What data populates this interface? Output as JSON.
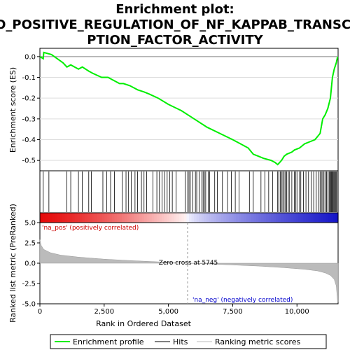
{
  "chart_data": {
    "type": "line",
    "title_lines": [
      "Enrichment plot:",
      "GO_POSITIVE_REGULATION_OF_NF_KAPPAB_TRANSCRI",
      "PTION_FACTOR_ACTIVITY"
    ],
    "n_genes": 11600,
    "x_ticks": [
      0,
      2500,
      5000,
      7500,
      10000
    ],
    "x_tick_labels": [
      "0",
      "2,500",
      "5,000",
      "7,500",
      "10,000"
    ],
    "xlim": [
      0,
      11600
    ],
    "xlabel": "Rank in Ordered Dataset",
    "es_panel": {
      "ylabel": "Enrichment score (ES)",
      "ylim": [
        -0.55,
        0.04
      ],
      "y_ticks": [
        0.0,
        -0.1,
        -0.2,
        -0.3,
        -0.4,
        -0.5
      ],
      "y_tick_labels": [
        "0.0",
        "-0.1",
        "-0.2",
        "-0.3",
        "-0.4",
        "-0.5"
      ],
      "series_color": "#00ee00",
      "x": [
        0,
        130,
        150,
        450,
        900,
        1050,
        1200,
        1500,
        1650,
        1900,
        2050,
        2400,
        2650,
        2800,
        3100,
        3250,
        3500,
        3800,
        4050,
        4250,
        4600,
        5000,
        5500,
        6000,
        6500,
        7000,
        7500,
        7800,
        8100,
        8300,
        8500,
        8700,
        9000,
        9150,
        9250,
        9400,
        9500,
        9600,
        9800,
        9900,
        10100,
        10300,
        10500,
        10700,
        10900,
        11000,
        11100,
        11200,
        11300,
        11380,
        11450,
        11530,
        11580
      ],
      "es": [
        0.0,
        -0.01,
        0.02,
        0.01,
        -0.03,
        -0.05,
        -0.04,
        -0.06,
        -0.05,
        -0.07,
        -0.08,
        -0.1,
        -0.1,
        -0.11,
        -0.13,
        -0.13,
        -0.14,
        -0.16,
        -0.17,
        -0.18,
        -0.2,
        -0.23,
        -0.26,
        -0.3,
        -0.34,
        -0.37,
        -0.4,
        -0.42,
        -0.44,
        -0.47,
        -0.48,
        -0.49,
        -0.5,
        -0.51,
        -0.52,
        -0.5,
        -0.48,
        -0.47,
        -0.46,
        -0.45,
        -0.44,
        -0.42,
        -0.41,
        -0.4,
        -0.37,
        -0.3,
        -0.28,
        -0.25,
        -0.2,
        -0.1,
        -0.06,
        -0.03,
        0.0
      ]
    },
    "hits": [
      130,
      350,
      1050,
      1200,
      1500,
      1650,
      1900,
      2000,
      2450,
      2600,
      2750,
      2900,
      3200,
      3350,
      3450,
      3550,
      3700,
      3800,
      3950,
      4050,
      4150,
      4400,
      4550,
      4650,
      4750,
      4850,
      4950,
      5050,
      5150,
      5300,
      5650,
      5750,
      5800,
      5850,
      5950,
      6050,
      6100,
      6200,
      6300,
      6350,
      6400,
      6450,
      6550,
      6600,
      6800,
      6900,
      7100,
      7300,
      7450,
      7600,
      7750,
      8150,
      8300,
      8600,
      8750,
      8900,
      9050,
      9250,
      9300,
      9350,
      9400,
      9450,
      9500,
      9550,
      9600,
      9650,
      9700,
      9800,
      9900,
      9950,
      10000,
      10100,
      10150,
      10250,
      10350,
      10450,
      10550,
      10650,
      10750,
      10850,
      10900,
      10950,
      11000,
      11050,
      11100,
      11150,
      11200,
      11250,
      11280,
      11310,
      11340,
      11370,
      11400,
      11430,
      11460,
      11490,
      11520,
      11550
    ],
    "metric_panel": {
      "ylabel": "Ranked list metric (PreRanked)",
      "ylim": [
        -5,
        5
      ],
      "y_ticks": [
        5.0,
        2.5,
        0.0,
        -2.5,
        -5.0
      ],
      "y_tick_labels": [
        "5.0",
        "2.5",
        "0.0",
        "-2.5",
        "-5.0"
      ],
      "x": [
        0,
        50,
        150,
        400,
        800,
        1500,
        2500,
        3500,
        4500,
        5745,
        7000,
        8500,
        9500,
        10300,
        10800,
        11100,
        11300,
        11450,
        11530,
        11580,
        11600
      ],
      "metric": [
        2.9,
        2.2,
        1.7,
        1.3,
        1.0,
        0.75,
        0.5,
        0.33,
        0.18,
        0.0,
        -0.15,
        -0.35,
        -0.55,
        -0.75,
        -0.95,
        -1.2,
        -1.5,
        -2.0,
        -2.8,
        -4.8,
        -4.8
      ],
      "zero_cross_label": "Zero cross at 5745",
      "zero_cross": 5745,
      "pos_label": "'na_pos' (positively correlated)",
      "neg_label": "'na_neg' (negatively correlated)",
      "pos_color": "#cc0000",
      "neg_color": "#0000cc",
      "fill_color": "#bbbbbb"
    },
    "legend": {
      "items": [
        {
          "label": "Enrichment profile",
          "color": "#00ee00"
        },
        {
          "label": "Hits",
          "color": "#000000"
        },
        {
          "label": "Ranking metric scores",
          "color": "#bbbbbb"
        }
      ]
    }
  }
}
